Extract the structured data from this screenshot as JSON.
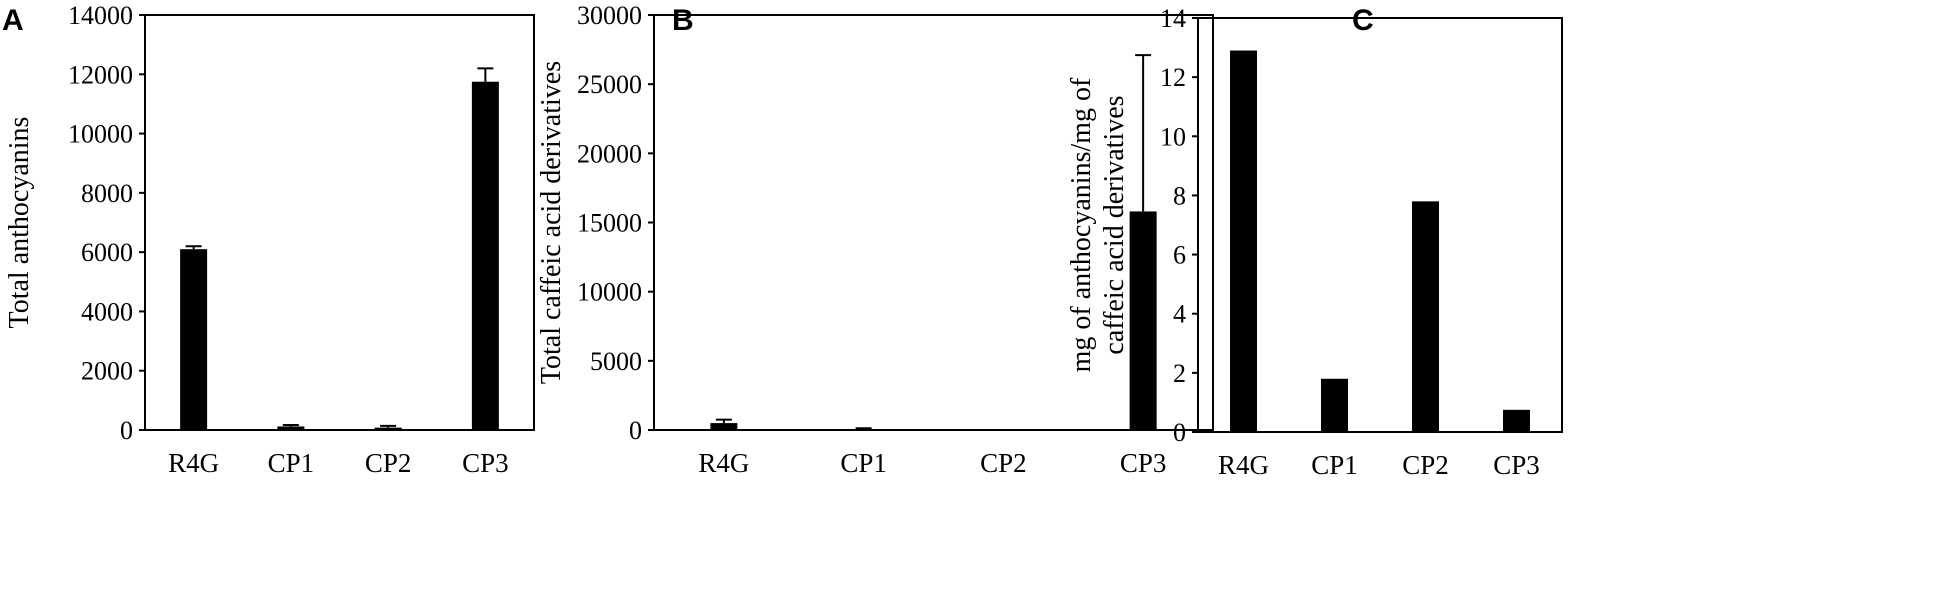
{
  "chart_data": [
    {
      "type": "bar",
      "panel": "A",
      "categories": [
        "R4G",
        "CP1",
        "CP2",
        "CP3"
      ],
      "values": [
        6100,
        120,
        80,
        11750
      ],
      "errors": [
        100,
        50,
        60,
        450
      ],
      "ylabel": "Total anthocyanins",
      "ylim": [
        0,
        14000
      ],
      "yticks": [
        0,
        2000,
        4000,
        6000,
        8000,
        10000,
        12000,
        14000
      ],
      "grid": false,
      "bar_color": "#000000"
    },
    {
      "type": "bar",
      "panel": "B",
      "categories": [
        "R4G",
        "CP1",
        "CP2",
        "CP3"
      ],
      "values": [
        500,
        50,
        20,
        15800
      ],
      "errors": [
        250,
        80,
        0,
        11300
      ],
      "ylabel": "Total caffeic acid  derivatives",
      "ylim": [
        0,
        30000
      ],
      "yticks": [
        0,
        5000,
        10000,
        15000,
        20000,
        25000,
        30000
      ],
      "grid": false,
      "bar_color": "#000000"
    },
    {
      "type": "bar",
      "panel": "C",
      "categories": [
        "R4G",
        "CP1",
        "CP2",
        "CP3"
      ],
      "values": [
        12.9,
        1.8,
        7.8,
        0.75
      ],
      "errors": [
        0,
        0,
        0,
        0
      ],
      "ylabel_lines": [
        "mg of anthocyanins/mg of",
        "caffeic acid derivatives"
      ],
      "ylim": [
        0,
        14
      ],
      "yticks": [
        0,
        2,
        4,
        6,
        8,
        10,
        12,
        14
      ],
      "grid": false,
      "bar_color": "#000000"
    }
  ]
}
